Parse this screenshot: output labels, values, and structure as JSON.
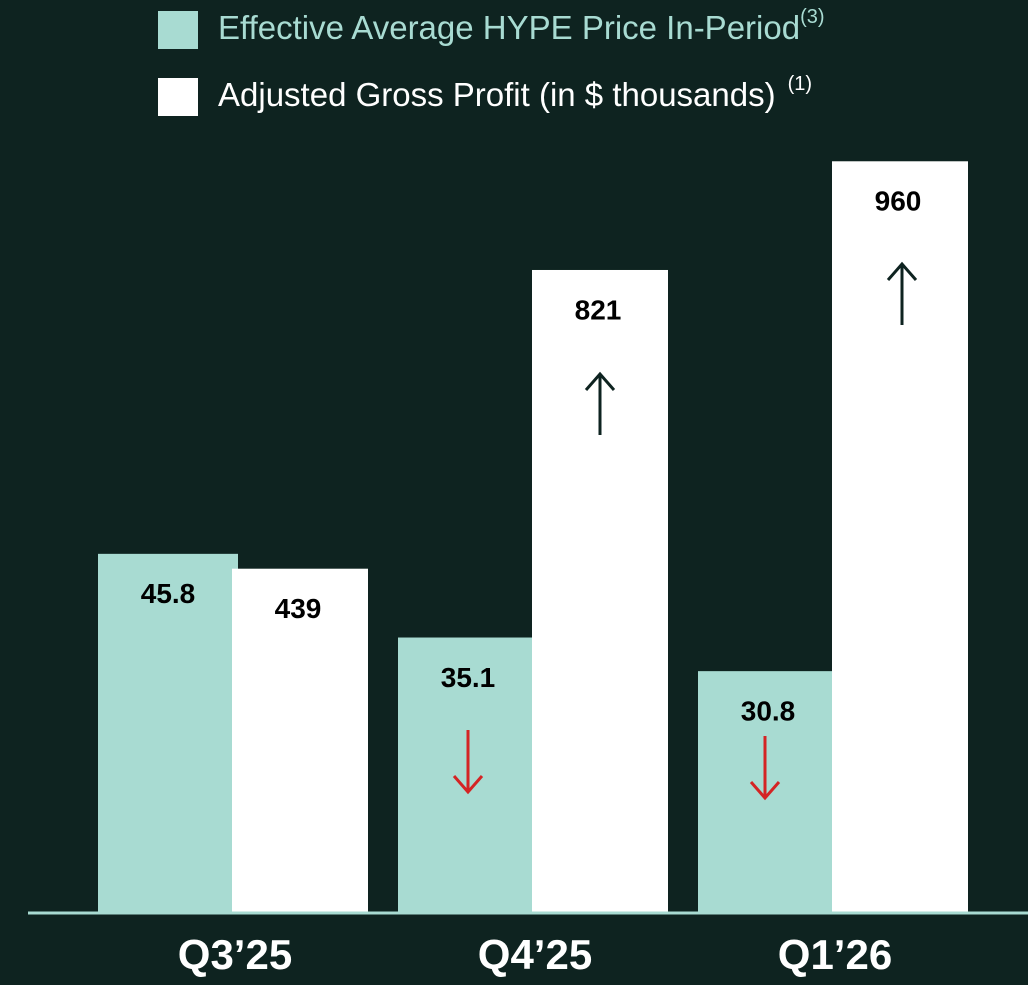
{
  "chart_data": {
    "type": "bar",
    "categories": [
      "Q3’25",
      "Q4’25",
      "Q1’26"
    ],
    "series": [
      {
        "name": "Effective Average HYPE Price In-Period",
        "footnote": "(3)",
        "color": "#a8dbd2",
        "values": [
          45.8,
          35.1,
          30.8
        ],
        "axis": "y"
      },
      {
        "name": "Adjusted Gross Profit (in $ thousands)",
        "footnote": "(1)",
        "color": "#ffffff",
        "values": [
          439,
          821,
          960
        ],
        "axis": "y2"
      }
    ],
    "ylim": [
      0,
      100
    ],
    "y2lim": [
      0,
      1000
    ],
    "grid": false
  }
}
